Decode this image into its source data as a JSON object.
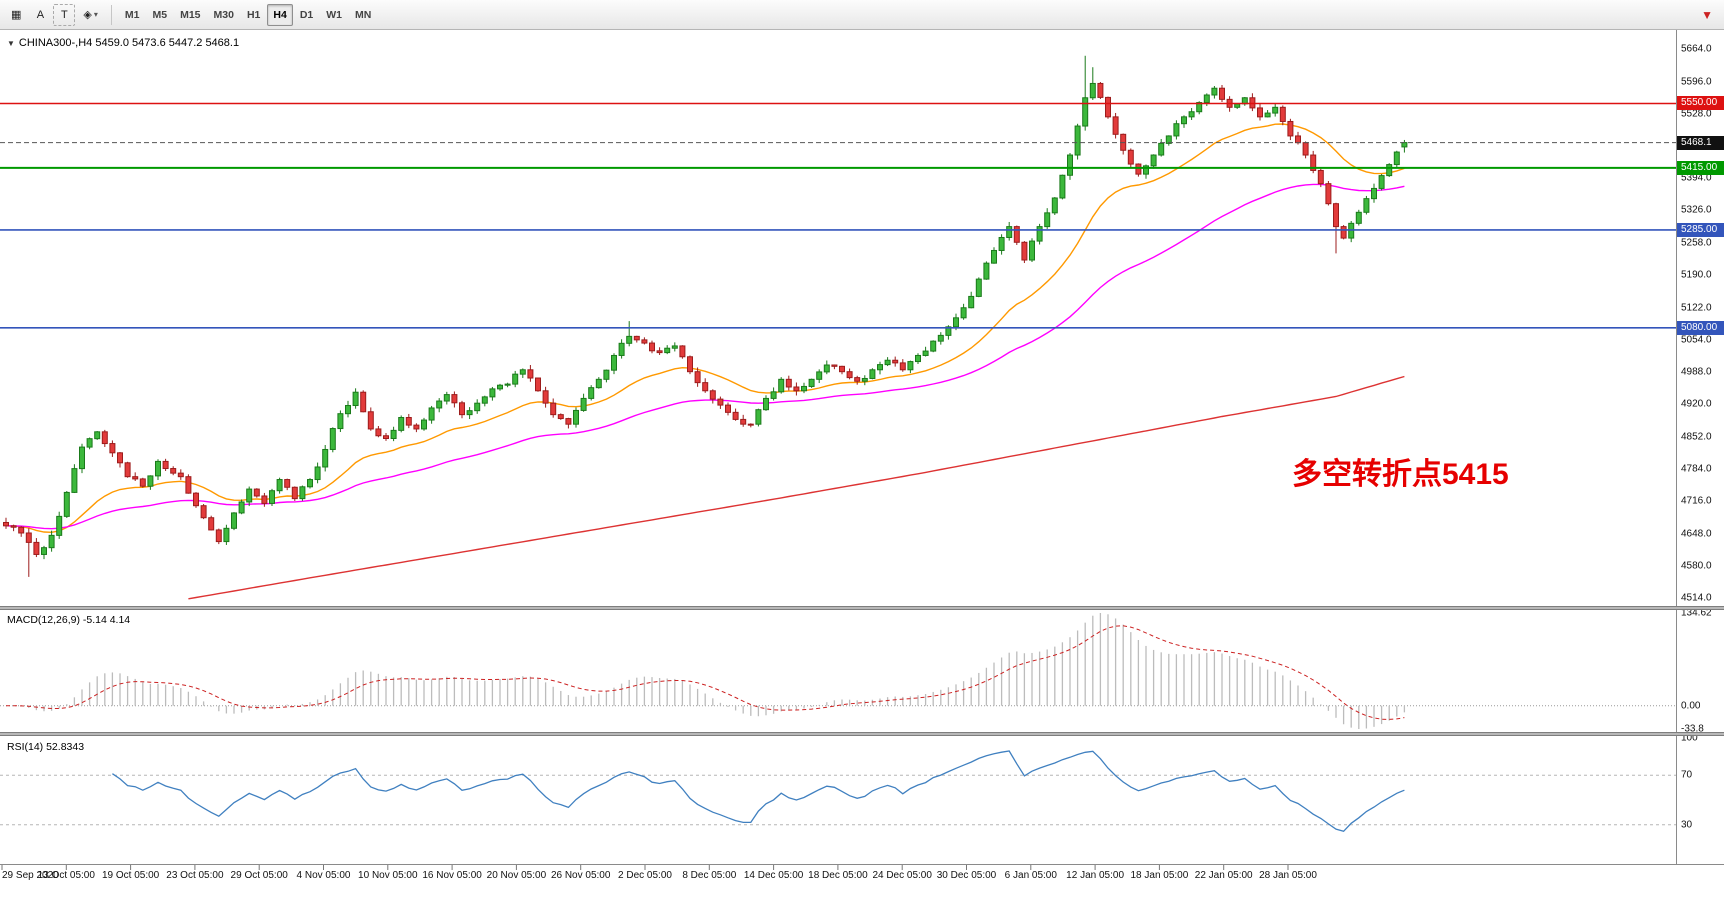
{
  "toolbar": {
    "tools": [
      {
        "name": "grid-tool",
        "glyph": "▦"
      },
      {
        "name": "text-a-tool",
        "glyph": "A"
      },
      {
        "name": "text-t-tool",
        "glyph": "T"
      },
      {
        "name": "shapes-tool",
        "glyph": "◈",
        "caret": "▾"
      }
    ],
    "timeframes": [
      "M1",
      "M5",
      "M15",
      "M30",
      "H1",
      "H4",
      "D1",
      "W1",
      "MN"
    ],
    "active_timeframe": "H4",
    "corner_icon": "▼"
  },
  "main_chart": {
    "collapse_arrow": "▼",
    "title": "CHINA300-,H4  5459.0 5473.6 5447.2 5468.1",
    "annotation": "多空转折点5415"
  },
  "price_axis": {
    "ticks": [
      {
        "text": "5664.0",
        "value": 5664
      },
      {
        "text": "5596.0",
        "value": 5596
      },
      {
        "text": "5528.0",
        "value": 5528
      },
      {
        "text": "5394.0",
        "value": 5394
      },
      {
        "text": "5326.0",
        "value": 5326
      },
      {
        "text": "5258.0",
        "value": 5258
      },
      {
        "text": "5190.0",
        "value": 5190
      },
      {
        "text": "5122.0",
        "value": 5122
      },
      {
        "text": "5054.0",
        "value": 5054
      },
      {
        "text": "4988.0",
        "value": 4988
      },
      {
        "text": "4920.0",
        "value": 4920
      },
      {
        "text": "4852.0",
        "value": 4852
      },
      {
        "text": "4784.0",
        "value": 4784
      },
      {
        "text": "4716.0",
        "value": 4716
      },
      {
        "text": "4648.0",
        "value": 4648
      },
      {
        "text": "4580.0",
        "value": 4580
      },
      {
        "text": "4514.0",
        "value": 4514
      }
    ],
    "badges": [
      {
        "label": "5550.00",
        "price": 5550,
        "bg": "#dd1111"
      },
      {
        "label": "5468.1",
        "price": 5468.1,
        "bg": "#111111"
      },
      {
        "label": "5415.00",
        "price": 5415,
        "bg": "#009900"
      },
      {
        "label": "5285.00",
        "price": 5285,
        "bg": "#3355bb"
      },
      {
        "label": "5080.00",
        "price": 5080,
        "bg": "#3355bb"
      }
    ]
  },
  "macd_panel": {
    "label": "MACD(12,26,9) -5.14 4.14",
    "axis_labels": [
      {
        "text": "134.62",
        "value": 134.62
      },
      {
        "text": "0.00",
        "value": 0
      },
      {
        "text": "-33.8",
        "value": -33.8
      }
    ]
  },
  "rsi_panel": {
    "label": "RSI(14) 52.8343",
    "axis_labels": [
      {
        "text": "100",
        "value": 100
      },
      {
        "text": "70",
        "value": 70
      },
      {
        "text": "30",
        "value": 30
      }
    ],
    "levels": [
      70,
      30
    ]
  },
  "time_axis": {
    "labels": [
      "29 Sep 2020",
      "13 Oct 05:00",
      "19 Oct 05:00",
      "23 Oct 05:00",
      "29 Oct 05:00",
      "4 Nov 05:00",
      "10 Nov 05:00",
      "16 Nov 05:00",
      "20 Nov 05:00",
      "26 Nov 05:00",
      "2 Dec 05:00",
      "8 Dec 05:00",
      "14 Dec 05:00",
      "18 Dec 05:00",
      "24 Dec 05:00",
      "30 Dec 05:00",
      "6 Jan 05:00",
      "12 Jan 05:00",
      "18 Jan 05:00",
      "22 Jan 05:00",
      "28 Jan 05:00"
    ]
  },
  "chart_data": {
    "type": "candlestick",
    "symbol": "CHINA300-",
    "timeframe": "H4",
    "ohlc_display": {
      "open": 5459.0,
      "high": 5473.6,
      "low": 5447.2,
      "close": 5468.1
    },
    "price_range_visible": [
      4497,
      5704
    ],
    "bar_count": 185,
    "close_waypoints": [
      [
        0,
        4665
      ],
      [
        2,
        4650
      ],
      [
        4,
        4605
      ],
      [
        6,
        4645
      ],
      [
        8,
        4735
      ],
      [
        10,
        4830
      ],
      [
        12,
        4862
      ],
      [
        14,
        4818
      ],
      [
        16,
        4768
      ],
      [
        18,
        4748
      ],
      [
        20,
        4800
      ],
      [
        23,
        4768
      ],
      [
        26,
        4682
      ],
      [
        28,
        4632
      ],
      [
        30,
        4692
      ],
      [
        32,
        4742
      ],
      [
        34,
        4712
      ],
      [
        36,
        4762
      ],
      [
        38,
        4722
      ],
      [
        40,
        4762
      ],
      [
        42,
        4825
      ],
      [
        44,
        4900
      ],
      [
        46,
        4945
      ],
      [
        48,
        4868
      ],
      [
        50,
        4848
      ],
      [
        52,
        4892
      ],
      [
        54,
        4868
      ],
      [
        56,
        4912
      ],
      [
        58,
        4940
      ],
      [
        60,
        4898
      ],
      [
        62,
        4922
      ],
      [
        64,
        4952
      ],
      [
        66,
        4962
      ],
      [
        68,
        4992
      ],
      [
        70,
        4948
      ],
      [
        72,
        4898
      ],
      [
        74,
        4878
      ],
      [
        76,
        4932
      ],
      [
        78,
        4972
      ],
      [
        80,
        5022
      ],
      [
        82,
        5062
      ],
      [
        84,
        5048
      ],
      [
        86,
        5028
      ],
      [
        88,
        5042
      ],
      [
        90,
        4988
      ],
      [
        92,
        4948
      ],
      [
        94,
        4918
      ],
      [
        96,
        4888
      ],
      [
        98,
        4878
      ],
      [
        100,
        4932
      ],
      [
        102,
        4972
      ],
      [
        104,
        4948
      ],
      [
        106,
        4972
      ],
      [
        108,
        5002
      ],
      [
        110,
        4988
      ],
      [
        112,
        4968
      ],
      [
        114,
        4992
      ],
      [
        116,
        5012
      ],
      [
        118,
        4992
      ],
      [
        120,
        5022
      ],
      [
        122,
        5052
      ],
      [
        124,
        5082
      ],
      [
        126,
        5122
      ],
      [
        128,
        5182
      ],
      [
        130,
        5242
      ],
      [
        132,
        5292
      ],
      [
        134,
        5222
      ],
      [
        136,
        5292
      ],
      [
        138,
        5352
      ],
      [
        140,
        5442
      ],
      [
        142,
        5562
      ],
      [
        143,
        5592
      ],
      [
        145,
        5522
      ],
      [
        147,
        5452
      ],
      [
        149,
        5402
      ],
      [
        151,
        5442
      ],
      [
        153,
        5482
      ],
      [
        155,
        5522
      ],
      [
        157,
        5552
      ],
      [
        159,
        5582
      ],
      [
        161,
        5542
      ],
      [
        163,
        5562
      ],
      [
        165,
        5522
      ],
      [
        167,
        5542
      ],
      [
        169,
        5482
      ],
      [
        171,
        5442
      ],
      [
        173,
        5382
      ],
      [
        175,
        5292
      ],
      [
        176,
        5268
      ],
      [
        178,
        5322
      ],
      [
        180,
        5372
      ],
      [
        182,
        5422
      ],
      [
        184,
        5468.1
      ]
    ],
    "overrides": [
      {
        "i": 3,
        "low": 4558
      },
      {
        "i": 82,
        "high": 5094
      },
      {
        "i": 142,
        "high": 5650
      },
      {
        "i": 143,
        "high": 5626
      },
      {
        "i": 175,
        "low": 5236
      },
      {
        "i": 184,
        "open": 5459.0,
        "high": 5473.6,
        "low": 5447.2,
        "close": 5468.1
      }
    ],
    "horizontal_lines": [
      {
        "price": 5550,
        "color": "#dd1111",
        "width": 1.4
      },
      {
        "price": 5468.1,
        "color": "#555555",
        "width": 1,
        "dash": "5 3"
      },
      {
        "price": 5415,
        "color": "#009900",
        "width": 2
      },
      {
        "price": 5285,
        "color": "#3355bb",
        "width": 1.6
      },
      {
        "price": 5080,
        "color": "#3355bb",
        "width": 1.6
      }
    ],
    "moving_averages": [
      {
        "name": "fast",
        "color": "#ff9900",
        "period": 21
      },
      {
        "name": "medium",
        "color": "#ff00ff",
        "period": 55
      },
      {
        "name": "slow",
        "color": "#dd3333",
        "points": [
          [
            24,
            4512
          ],
          [
            40,
            4556
          ],
          [
            60,
            4610
          ],
          [
            80,
            4664
          ],
          [
            100,
            4718
          ],
          [
            120,
            4774
          ],
          [
            140,
            4834
          ],
          [
            160,
            4894
          ],
          [
            175,
            4936
          ],
          [
            184,
            4978
          ]
        ]
      }
    ],
    "indicators": {
      "macd": {
        "params": [
          12,
          26,
          9
        ],
        "current_values": [
          -5.14,
          4.14
        ],
        "scale": [
          -33.8,
          134.62
        ]
      },
      "rsi": {
        "period": 14,
        "current_value": 52.8343,
        "scale": [
          0,
          100
        ],
        "levels": [
          70,
          30
        ]
      }
    },
    "colors": {
      "bull": "#3cb83c",
      "bull_border": "#1a7a1a",
      "bear": "#e23b3b",
      "bear_border": "#9c1c1c",
      "macd_hist": "#bcbcbc",
      "macd_signal": "#cc2222",
      "rsi_line": "#4080c0"
    }
  }
}
